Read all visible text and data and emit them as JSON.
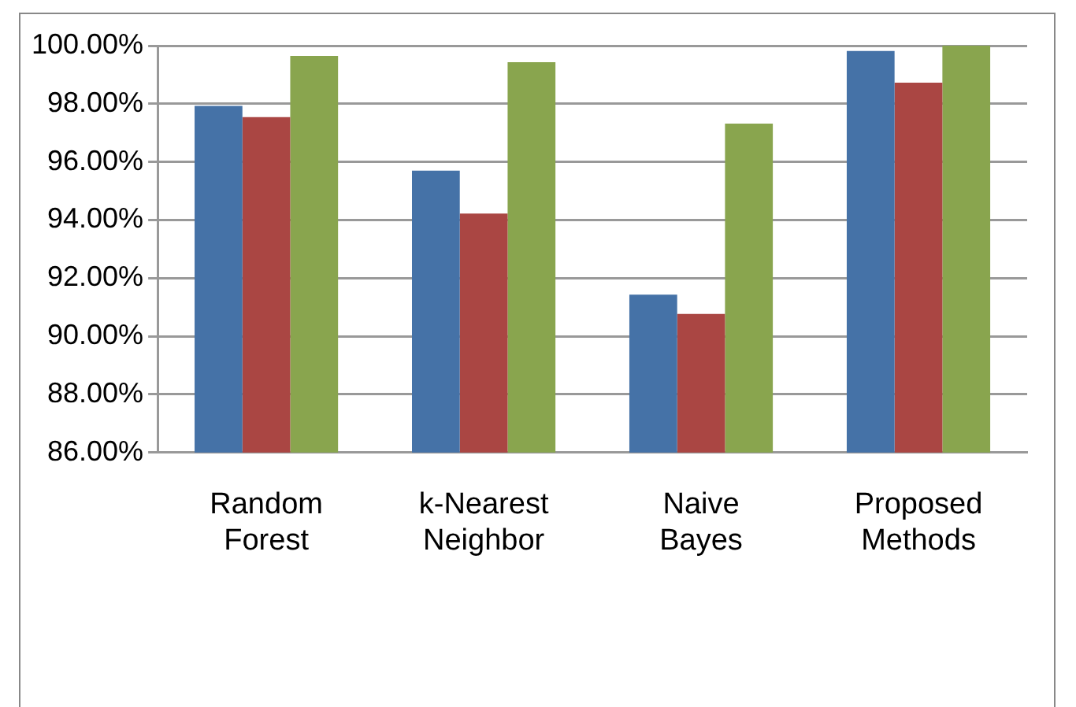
{
  "chart_data": {
    "type": "bar",
    "categories": [
      "Random Forest",
      "k-Nearest Neighbor",
      "Naive Bayes",
      "Proposed Methods"
    ],
    "series": [
      {
        "color": "#4572a7",
        "values": [
          97.93,
          95.7,
          91.43,
          99.82
        ]
      },
      {
        "color": "#aa4643",
        "values": [
          97.54,
          94.22,
          90.77,
          98.73
        ]
      },
      {
        "color": "#89a54e",
        "values": [
          99.65,
          99.43,
          97.32,
          100
        ]
      }
    ],
    "ylim": [
      86,
      100
    ],
    "yticks": [
      {
        "value": 86,
        "label": "86.00%"
      },
      {
        "value": 88,
        "label": "88.00%"
      },
      {
        "value": 90,
        "label": "90.00%"
      },
      {
        "value": 92,
        "label": "92.00%"
      },
      {
        "value": 94,
        "label": "94.00%"
      },
      {
        "value": 96,
        "label": "96.00%"
      },
      {
        "value": 98,
        "label": "98.00%"
      },
      {
        "value": 100,
        "label": "100.00%"
      }
    ],
    "grid": "y",
    "legend": false
  }
}
